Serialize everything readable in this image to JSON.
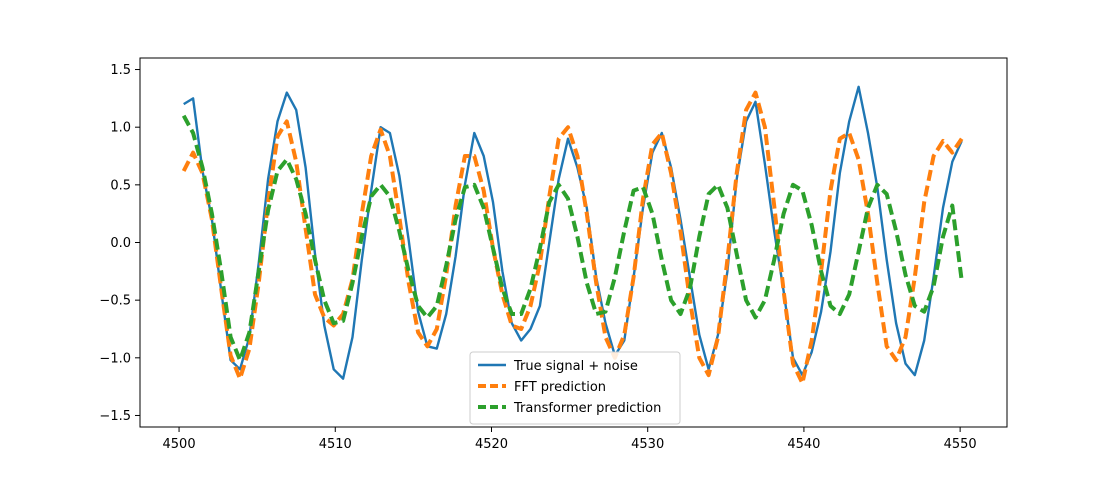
{
  "chart_data": {
    "type": "line",
    "title": "",
    "xlabel": "",
    "ylabel": "",
    "xlim": [
      4497.5,
      4553.0
    ],
    "ylim": [
      -1.6,
      1.6
    ],
    "xticks": [
      4500,
      4510,
      4520,
      4530,
      4540,
      4550
    ],
    "yticks": [
      -1.5,
      -1.0,
      -0.5,
      0.0,
      0.5,
      1.0,
      1.5
    ],
    "xtick_labels": [
      "4500",
      "4510",
      "4520",
      "4530",
      "4540",
      "4550"
    ],
    "ytick_labels": [
      "−1.5",
      "−1.0",
      "−0.5",
      "0.0",
      "0.5",
      "1.0",
      "1.5"
    ],
    "grid": false,
    "legend_position": "lower center",
    "x": [
      4500.3,
      4500.9,
      4501.5,
      4502.1,
      4502.7,
      4503.3,
      4503.9,
      4504.5,
      4505.1,
      4505.7,
      4506.3,
      4506.9,
      4507.5,
      4508.1,
      4508.7,
      4509.3,
      4509.9,
      4510.5,
      4511.1,
      4511.7,
      4512.3,
      4512.9,
      4513.5,
      4514.1,
      4514.7,
      4515.3,
      4515.9,
      4516.5,
      4517.1,
      4517.7,
      4518.3,
      4518.9,
      4519.5,
      4520.1,
      4520.7,
      4521.3,
      4521.9,
      4522.5,
      4523.1,
      4523.7,
      4524.3,
      4524.9,
      4525.5,
      4526.1,
      4526.7,
      4527.3,
      4527.9,
      4528.5,
      4529.1,
      4529.7,
      4530.3,
      4530.9,
      4531.5,
      4532.1,
      4532.7,
      4533.3,
      4533.9,
      4534.5,
      4535.1,
      4535.7,
      4536.3,
      4536.9,
      4537.5,
      4538.1,
      4538.7,
      4539.3,
      4539.9,
      4540.5,
      4541.1,
      4541.7,
      4542.3,
      4542.9,
      4543.5,
      4544.1,
      4544.7,
      4545.3,
      4545.9,
      4546.5,
      4547.1,
      4547.7,
      4548.3,
      4548.9,
      4549.5,
      4550.1
    ],
    "series": [
      {
        "name": "True signal + noise",
        "color": "#1f77b4",
        "style": "solid",
        "values": [
          1.2,
          1.25,
          0.62,
          0.2,
          -0.42,
          -1.02,
          -1.1,
          -0.82,
          -0.18,
          0.55,
          1.05,
          1.3,
          1.15,
          0.65,
          -0.1,
          -0.72,
          -1.1,
          -1.18,
          -0.82,
          -0.15,
          0.45,
          1.0,
          0.95,
          0.58,
          0.02,
          -0.6,
          -0.9,
          -0.92,
          -0.62,
          -0.12,
          0.5,
          0.95,
          0.75,
          0.35,
          -0.25,
          -0.7,
          -0.85,
          -0.75,
          -0.55,
          0.0,
          0.55,
          0.9,
          0.65,
          0.3,
          -0.3,
          -0.7,
          -0.98,
          -0.85,
          -0.3,
          0.3,
          0.78,
          0.95,
          0.65,
          0.2,
          -0.3,
          -0.8,
          -1.1,
          -0.8,
          -0.25,
          0.55,
          1.05,
          1.22,
          0.68,
          0.1,
          -0.42,
          -1.0,
          -1.15,
          -0.95,
          -0.6,
          -0.08,
          0.6,
          1.05,
          1.35,
          0.95,
          0.48,
          -0.15,
          -0.7,
          -1.05,
          -1.15,
          -0.85,
          -0.3,
          0.3,
          0.7,
          0.88
        ]
      },
      {
        "name": "FFT prediction",
        "color": "#ff7f0e",
        "style": "dashed",
        "values": [
          0.62,
          0.78,
          0.6,
          0.2,
          -0.4,
          -0.98,
          -1.18,
          -0.92,
          -0.35,
          0.35,
          0.92,
          1.05,
          0.7,
          0.12,
          -0.45,
          -0.65,
          -0.72,
          -0.62,
          -0.32,
          0.25,
          0.75,
          0.98,
          0.75,
          0.22,
          -0.35,
          -0.78,
          -0.9,
          -0.75,
          -0.28,
          0.32,
          0.75,
          0.75,
          0.45,
          -0.05,
          -0.45,
          -0.72,
          -0.75,
          -0.55,
          -0.18,
          0.4,
          0.9,
          1.0,
          0.75,
          0.25,
          -0.35,
          -0.82,
          -1.0,
          -0.8,
          -0.3,
          0.38,
          0.85,
          0.95,
          0.6,
          0.1,
          -0.5,
          -1.0,
          -1.15,
          -0.82,
          -0.15,
          0.6,
          1.15,
          1.3,
          1.0,
          0.32,
          -0.42,
          -1.05,
          -1.22,
          -0.85,
          -0.25,
          0.45,
          0.9,
          0.95,
          0.72,
          0.25,
          -0.35,
          -0.9,
          -1.02,
          -0.82,
          -0.3,
          0.35,
          0.75,
          0.88,
          0.78,
          0.9
        ]
      },
      {
        "name": "Transformer prediction",
        "color": "#2ca02c",
        "style": "dashed",
        "values": [
          1.1,
          0.95,
          0.65,
          0.25,
          -0.25,
          -0.82,
          -1.02,
          -0.78,
          -0.25,
          0.28,
          0.62,
          0.72,
          0.55,
          0.25,
          -0.15,
          -0.5,
          -0.7,
          -0.68,
          -0.35,
          0.05,
          0.4,
          0.5,
          0.4,
          0.1,
          -0.25,
          -0.55,
          -0.65,
          -0.55,
          -0.2,
          0.2,
          0.48,
          0.5,
          0.3,
          -0.05,
          -0.4,
          -0.62,
          -0.62,
          -0.4,
          -0.05,
          0.35,
          0.5,
          0.38,
          0.05,
          -0.35,
          -0.62,
          -0.6,
          -0.3,
          0.1,
          0.45,
          0.48,
          0.25,
          -0.15,
          -0.5,
          -0.62,
          -0.4,
          0.05,
          0.42,
          0.5,
          0.3,
          -0.1,
          -0.5,
          -0.65,
          -0.5,
          -0.15,
          0.25,
          0.5,
          0.45,
          0.15,
          -0.25,
          -0.55,
          -0.62,
          -0.45,
          -0.08,
          0.3,
          0.5,
          0.42,
          0.1,
          -0.28,
          -0.55,
          -0.6,
          -0.38,
          0.05,
          0.32,
          -0.33
        ]
      }
    ]
  }
}
